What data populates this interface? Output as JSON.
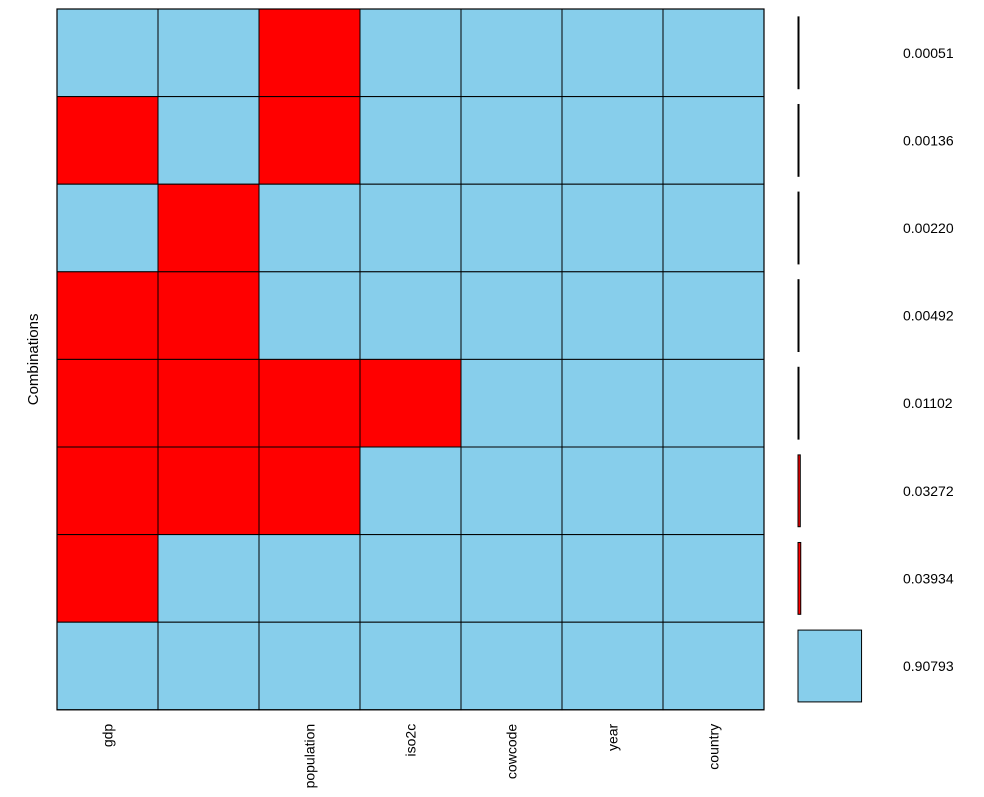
{
  "chart_data": {
    "type": "heatmap",
    "ylabel": "Combinations",
    "variables": [
      "gdp",
      "",
      "population",
      "iso2c",
      "cowcode",
      "year",
      "country"
    ],
    "rows": [
      {
        "proportion": "0.00051",
        "value": 0.00051,
        "missing": [
          0,
          0,
          1,
          0,
          0,
          0,
          0
        ]
      },
      {
        "proportion": "0.00136",
        "value": 0.00136,
        "missing": [
          1,
          0,
          1,
          0,
          0,
          0,
          0
        ]
      },
      {
        "proportion": "0.00220",
        "value": 0.0022,
        "missing": [
          0,
          1,
          0,
          0,
          0,
          0,
          0
        ]
      },
      {
        "proportion": "0.00492",
        "value": 0.00492,
        "missing": [
          1,
          1,
          0,
          0,
          0,
          0,
          0
        ]
      },
      {
        "proportion": "0.01102",
        "value": 0.01102,
        "missing": [
          1,
          1,
          1,
          1,
          0,
          0,
          0
        ]
      },
      {
        "proportion": "0.03272",
        "value": 0.03272,
        "missing": [
          1,
          1,
          1,
          0,
          0,
          0,
          0
        ]
      },
      {
        "proportion": "0.03934",
        "value": 0.03934,
        "missing": [
          1,
          0,
          0,
          0,
          0,
          0,
          0
        ]
      },
      {
        "proportion": "0.90793",
        "value": 0.90793,
        "missing": [
          0,
          0,
          0,
          0,
          0,
          0,
          0
        ]
      }
    ],
    "colors": {
      "observed": "#87ceeb",
      "missing": "#ff0000",
      "border": "#000000"
    },
    "grid": true
  }
}
